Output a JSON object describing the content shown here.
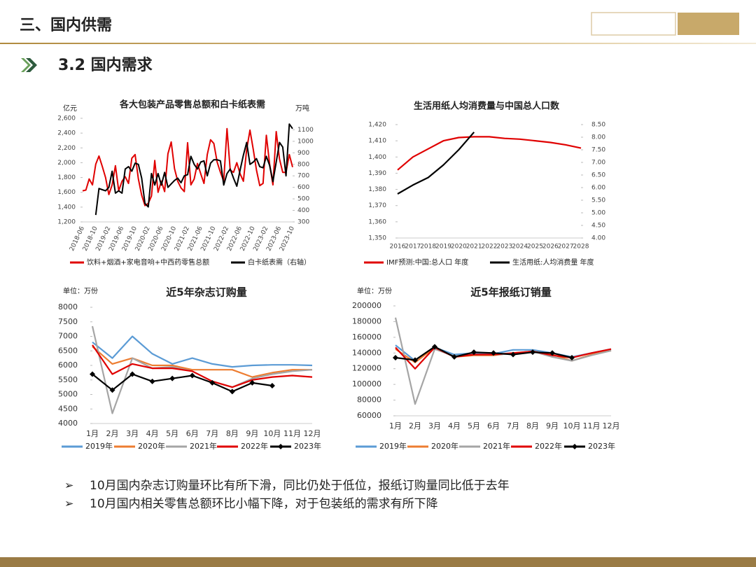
{
  "header": {
    "title": "三、国内供需"
  },
  "section": {
    "title": "3.2 国内需求"
  },
  "bullets": [
    "10月国内杂志订购量环比有所下滑，同比仍处于低位，报纸订购量同比低于去年",
    "10月国内相关零售总额环比小幅下降，对于包装纸的需求有所下降"
  ],
  "chart_data": [
    {
      "type": "line",
      "title": "各大包装产品零售总额和白卡纸表需",
      "ylabel": "亿元",
      "y2label": "万吨",
      "categories": [
        "2018-06",
        null,
        null,
        null,
        "2018-10",
        null,
        null,
        null,
        "2019-02",
        null,
        null,
        null,
        "2019-06",
        null,
        null,
        null,
        "2019-10",
        null,
        null,
        null,
        "2020-02",
        null,
        null,
        null,
        "2020-06",
        null,
        null,
        null,
        "2020-10",
        null,
        null,
        null,
        "2021-02",
        null,
        null,
        null,
        "2021-06",
        null,
        null,
        null,
        "2021-10",
        null,
        null,
        null,
        "2022-02",
        null,
        null,
        null,
        "2022-06",
        null,
        null,
        null,
        "2022-10",
        null,
        null,
        null,
        "2023-02",
        null,
        null,
        null,
        "2023-06",
        null,
        null,
        null,
        "2023-10"
      ],
      "ylim": [
        1200,
        2600
      ],
      "yticks": [
        {
          "value": 1200,
          "label": "1,200"
        },
        {
          "value": 1400,
          "label": "1,400"
        },
        {
          "value": 1600,
          "label": "1,600"
        },
        {
          "value": 1800,
          "label": "1,800"
        },
        {
          "value": 2000,
          "label": "2,000"
        },
        {
          "value": 2200,
          "label": "2,200"
        },
        {
          "value": 2400,
          "label": "2,400"
        },
        {
          "value": 2600,
          "label": "2,600"
        }
      ],
      "y2lim": [
        300,
        1200
      ],
      "y2ticks": [
        300,
        400,
        500,
        600,
        700,
        800,
        900,
        1000,
        1100
      ],
      "series": [
        {
          "name": "饮料+烟酒+家电音响+中西药零售总额",
          "color": "#e00000",
          "values": [
            1620,
            1630,
            1780,
            1700,
            1980,
            2090,
            1950,
            1800,
            1570,
            1700,
            1960,
            1620,
            1750,
            1810,
            1720,
            2060,
            2110,
            1780,
            1560,
            1420,
            1450,
            1550,
            2030,
            1600,
            1750,
            1610,
            2120,
            2280,
            1920,
            1750,
            1660,
            1610,
            2270,
            1700,
            1780,
            1990,
            1850,
            1720,
            2110,
            2310,
            2260,
            2010,
            1870,
            1750,
            2460,
            1900,
            1870,
            2000,
            1850,
            1750,
            2180,
            2440,
            2180,
            1900,
            1690,
            1720,
            2370,
            1980,
            1700,
            2420,
            2050,
            1870,
            1870,
            2110,
            1940
          ]
        },
        {
          "name": "白卡纸表需（右轴）",
          "color": "#000000",
          "axis": "y2",
          "values": [
            null,
            null,
            null,
            null,
            360,
            590,
            580,
            570,
            600,
            740,
            550,
            570,
            550,
            760,
            780,
            740,
            810,
            800,
            680,
            460,
            430,
            720,
            620,
            720,
            620,
            730,
            600,
            630,
            660,
            680,
            640,
            700,
            710,
            870,
            800,
            760,
            820,
            830,
            700,
            810,
            840,
            840,
            830,
            620,
            720,
            760,
            680,
            610,
            750,
            880,
            990,
            800,
            820,
            850,
            780,
            770,
            870,
            790,
            650,
            820,
            990,
            950,
            700,
            1150,
            1110
          ]
        }
      ]
    },
    {
      "type": "line",
      "title": "生活用纸人均消费量与中国总人口数",
      "categories": [
        "2016",
        "2017",
        "2018",
        "2019",
        "2020",
        "2021",
        "2022",
        "2023",
        "2024",
        "2025",
        "2026",
        "2027",
        "2028"
      ],
      "ylim": [
        1350,
        1420
      ],
      "yticks": [
        {
          "value": 1350,
          "label": "1,350"
        },
        {
          "value": 1360,
          "label": "1,360"
        },
        {
          "value": 1370,
          "label": "1,370"
        },
        {
          "value": 1380,
          "label": "1,380"
        },
        {
          "value": 1390,
          "label": "1,390"
        },
        {
          "value": 1400,
          "label": "1,400"
        },
        {
          "value": 1410,
          "label": "1,410"
        },
        {
          "value": 1420,
          "label": "1,420"
        }
      ],
      "y2lim": [
        4,
        8.5
      ],
      "y2ticks": [
        {
          "value": 4,
          "label": "4.00"
        },
        {
          "value": 4.5,
          "label": "4.50"
        },
        {
          "value": 5,
          "label": "5.00"
        },
        {
          "value": 5.5,
          "label": "5.50"
        },
        {
          "value": 6,
          "label": "6.00"
        },
        {
          "value": 6.5,
          "label": "6.50"
        },
        {
          "value": 7,
          "label": "7.00"
        },
        {
          "value": 7.5,
          "label": "7.50"
        },
        {
          "value": 8,
          "label": "8.00"
        },
        {
          "value": 8.5,
          "label": "8.50"
        }
      ],
      "series": [
        {
          "name": "IMF预测:中国:总人口 年度",
          "color": "#e00000",
          "values": [
            1392,
            1400,
            1405,
            1410,
            1412,
            1412.5,
            1412.5,
            1411.5,
            1411,
            1410,
            1409,
            1407.5,
            1405.5
          ]
        },
        {
          "name": "生活用纸:人均消费量 年度",
          "color": "#000000",
          "axis": "y2",
          "values": [
            5.75,
            6.1,
            6.4,
            6.9,
            7.5,
            8.2,
            null,
            null,
            null,
            null,
            null,
            null,
            null
          ]
        }
      ]
    },
    {
      "type": "line",
      "title": "近5年杂志订购量",
      "ylabel": "单位：万份",
      "categories": [
        "1月",
        "2月",
        "3月",
        "4月",
        "5月",
        "6月",
        "7月",
        "8月",
        "9月",
        "10月",
        "11月",
        "12月"
      ],
      "ylim": [
        4000,
        8000
      ],
      "yticks": [
        4000,
        4500,
        5000,
        5500,
        6000,
        6500,
        7000,
        7500,
        8000
      ],
      "series": [
        {
          "name": "2019年",
          "color": "#5b9bd5",
          "values": [
            6800,
            6250,
            7000,
            6400,
            6050,
            6250,
            6050,
            5950,
            6000,
            6020,
            6020,
            6000
          ]
        },
        {
          "name": "2020年",
          "color": "#ed7d31",
          "values": [
            6650,
            6050,
            6250,
            6000,
            6000,
            5850,
            5850,
            5850,
            5600,
            5750,
            5850,
            5850
          ]
        },
        {
          "name": "2021年",
          "color": "#a5a5a5",
          "values": [
            7350,
            4350,
            6250,
            5900,
            5950,
            5800,
            5450,
            5250,
            5550,
            5700,
            5800,
            5850
          ]
        },
        {
          "name": "2022年",
          "color": "#e00000",
          "values": [
            6700,
            5700,
            6050,
            5900,
            5900,
            5800,
            5450,
            5250,
            5500,
            5600,
            5650,
            5600
          ]
        },
        {
          "name": "2023年",
          "color": "#000000",
          "marker": "diamond",
          "values": [
            5700,
            5150,
            5700,
            5450,
            5550,
            5650,
            5400,
            5100,
            5400,
            5300,
            null,
            null
          ]
        }
      ]
    },
    {
      "type": "line",
      "title": "近5年报纸订销量",
      "ylabel": "单位：万份",
      "categories": [
        "1月",
        "2月",
        "3月",
        "4月",
        "5月",
        "6月",
        "7月",
        "8月",
        "9月",
        "10月",
        "11月",
        "12月"
      ],
      "ylim": [
        60000,
        200000
      ],
      "yticks": [
        60000,
        80000,
        100000,
        120000,
        140000,
        160000,
        180000,
        200000
      ],
      "series": [
        {
          "name": "2019年",
          "color": "#5b9bd5",
          "values": [
            150000,
            130000,
            147000,
            138000,
            140000,
            139000,
            144000,
            144000,
            140000,
            135000,
            140000,
            145000
          ]
        },
        {
          "name": "2020年",
          "color": "#ed7d31",
          "values": [
            145000,
            128000,
            147000,
            135000,
            137000,
            137000,
            140000,
            142000,
            138000,
            130000,
            138000,
            143000
          ]
        },
        {
          "name": "2021年",
          "color": "#a5a5a5",
          "values": [
            185000,
            75000,
            145000,
            136000,
            138000,
            138000,
            139000,
            142000,
            135000,
            130000,
            137000,
            143000
          ]
        },
        {
          "name": "2022年",
          "color": "#e00000",
          "values": [
            147000,
            120000,
            147000,
            135000,
            138000,
            138000,
            140000,
            142000,
            137000,
            134000,
            140000,
            145000
          ]
        },
        {
          "name": "2023年",
          "color": "#000000",
          "marker": "diamond",
          "values": [
            134000,
            131000,
            148000,
            135000,
            141000,
            140000,
            138000,
            141000,
            140000,
            134000,
            null,
            null
          ]
        }
      ]
    }
  ]
}
